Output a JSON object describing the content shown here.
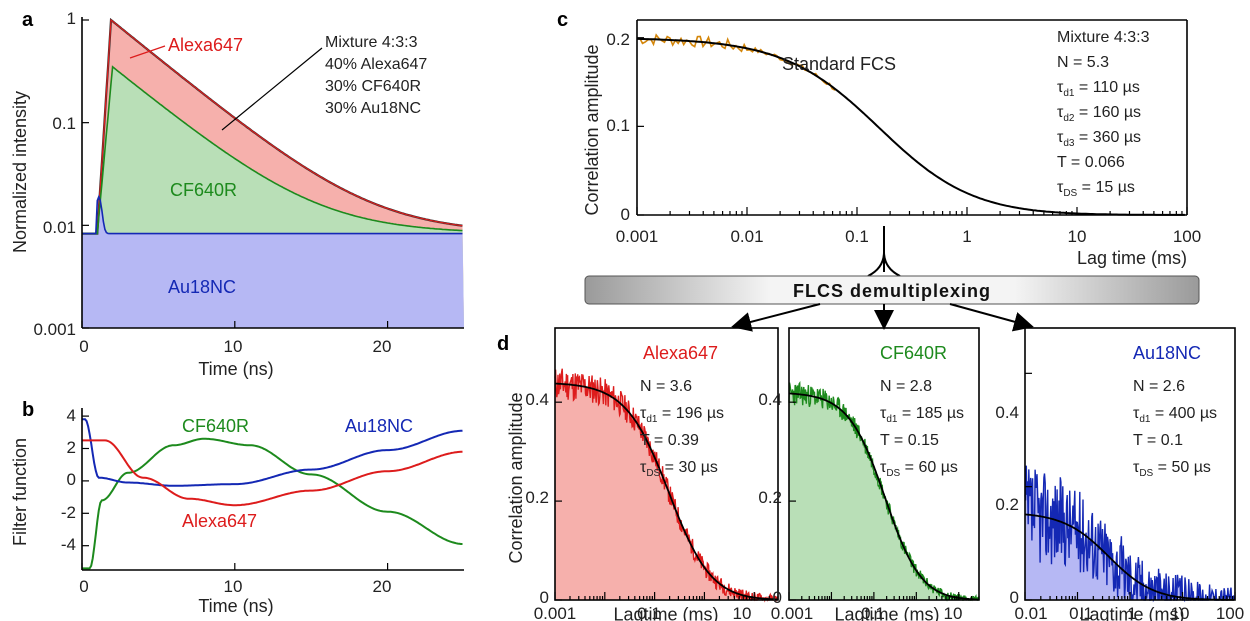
{
  "panels": {
    "a": {
      "letter": "a",
      "ylabel": "Normalized intensity",
      "xlabel": "Time (ns)",
      "xticks": [
        "0",
        "10",
        "20"
      ],
      "yticks": [
        "0.001",
        "0.01",
        "0.1",
        "1"
      ],
      "legend_lines": [
        "Mixture 4:3:3",
        "40% Alexa647",
        "30% CF640R",
        "30% Au18NC"
      ],
      "series_labels": {
        "alexa": "Alexa647",
        "cf": "CF640R",
        "au": "Au18NC"
      }
    },
    "b": {
      "letter": "b",
      "ylabel": "Filter function",
      "xlabel": "Time (ns)",
      "xticks": [
        "0",
        "10",
        "20"
      ],
      "yticks": [
        "4",
        "2",
        "0",
        "-2",
        "-4"
      ],
      "series_labels": {
        "cf": "CF640R",
        "au": "Au18NC",
        "alexa": "Alexa647"
      }
    },
    "c": {
      "letter": "c",
      "ylabel": "Correlation amplitude",
      "xlabel": "Lag time (ms)",
      "xticks": [
        "0.001",
        "0.01",
        "0.1",
        "1",
        "10",
        "100"
      ],
      "yticks": [
        "0",
        "0.1",
        "0.2"
      ],
      "title": "Standard FCS",
      "params": {
        "l1": "Mixture 4:3:3",
        "l2": "N = 5.3",
        "l3_sym": "τ",
        "l3_sub": "d1",
        "l3_val": " = 110 µs",
        "l4_sym": "τ",
        "l4_sub": "d2",
        "l4_val": " = 160 µs",
        "l5_sym": "τ",
        "l5_sub": "d3",
        "l5_val": " = 360 µs",
        "l6": "T = 0.066",
        "l7_sym": "τ",
        "l7_sub": "DS",
        "l7_val": " = 15 µs"
      }
    },
    "d": {
      "letter": "d",
      "ylabel": "Correlation amplitude",
      "banner": "FLCS demultiplexing",
      "alexa": {
        "name": "Alexa647",
        "xlabel": "Lagtime (ms)",
        "xticks": [
          "0.001",
          "0.1",
          "10"
        ],
        "yticks": [
          "0",
          "0.2",
          "0.4"
        ],
        "p1": "N = 3.6",
        "p2_sym": "τ",
        "p2_sub": "d1",
        "p2_val": " = 196 µs",
        "p3": "T = 0.39",
        "p4_sym": "τ",
        "p4_sub": "DS",
        "p4_val": " = 30 µs"
      },
      "cf": {
        "name": "CF640R",
        "xlabel": "Lagtime (ms)",
        "xticks": [
          "0.001",
          "0.1",
          "10"
        ],
        "yticks": [
          "0",
          "0.2",
          "0.4"
        ],
        "p1": "N = 2.8",
        "p2_sym": "τ",
        "p2_sub": "d1",
        "p2_val": " = 185 µs",
        "p3": "T = 0.15",
        "p4_sym": "τ",
        "p4_sub": "DS",
        "p4_val": " = 60 µs"
      },
      "au": {
        "name": "Au18NC",
        "xlabel": "Lagtime (ms)",
        "xticks": [
          "0.01",
          "0.1",
          "1",
          "10",
          "100"
        ],
        "yticks": [
          "0",
          "0.2",
          "0.4"
        ],
        "p1": "N = 2.6",
        "p2_sym": "τ",
        "p2_sub": "d1",
        "p2_val": " = 400 µs",
        "p3": "T = 0.1",
        "p4_sym": "τ",
        "p4_sub": "DS",
        "p4_val": " = 50 µs"
      }
    }
  },
  "colors": {
    "alexa": "#dd1c1c",
    "alexa_fill": "#f6b0ac",
    "cf": "#1d8a1d",
    "cf_fill": "#b9dfb7",
    "au": "#1428b4",
    "au_fill": "#b6b8f4",
    "fit": "#000000",
    "fcs_data": "#d4860a"
  },
  "chart_data": [
    {
      "panel": "a",
      "type": "area",
      "x_range": [
        0,
        25
      ],
      "y_range": [
        0.001,
        1
      ],
      "y_scale": "log",
      "series": [
        {
          "name": "Alexa647",
          "peak": {
            "x": 1.9,
            "y": 1.0
          },
          "tail_end": {
            "x": 25,
            "y": 0.0085
          }
        },
        {
          "name": "CF640R",
          "peak": {
            "x": 2.0,
            "y": 0.35
          },
          "tail_end": {
            "x": 25,
            "y": 0.0085
          }
        },
        {
          "name": "Au18NC",
          "peak": {
            "x": 1.1,
            "y": 0.019
          },
          "baseline": 0.0083
        }
      ]
    },
    {
      "panel": "b",
      "type": "line",
      "x_range": [
        0,
        25
      ],
      "y_range": [
        -5.5,
        4.5
      ],
      "series": [
        {
          "name": "CF640R",
          "x": [
            0.5,
            1.3,
            3,
            6,
            8,
            11,
            15,
            20,
            25
          ],
          "y": [
            -5.4,
            -1.2,
            0.5,
            2.2,
            2.6,
            2.2,
            0.4,
            -1.9,
            -3.9
          ]
        },
        {
          "name": "Au18NC",
          "x": [
            0.2,
            1.1,
            3,
            6,
            10,
            15,
            20,
            25
          ],
          "y": [
            3.8,
            0.2,
            -0.1,
            -0.3,
            -0.2,
            0.7,
            1.9,
            3.1
          ]
        },
        {
          "name": "Alexa647",
          "x": [
            0.4,
            1.5,
            4,
            7,
            10,
            15,
            20,
            25
          ],
          "y": [
            2.5,
            2.5,
            0.2,
            -1.1,
            -1.5,
            -0.6,
            0.6,
            1.8
          ]
        }
      ]
    },
    {
      "panel": "c",
      "type": "line",
      "x_range": [
        0.001,
        100
      ],
      "x_scale": "log",
      "y_range": [
        0,
        0.22
      ],
      "fit": {
        "G0": 0.2,
        "tau_ms": 0.16
      }
    },
    {
      "panel": "d",
      "type": "area",
      "x_scale": "log",
      "series": [
        {
          "name": "Alexa647",
          "x_range": [
            0.001,
            30
          ],
          "y_range": [
            0,
            0.55
          ],
          "G0": 0.44,
          "tau_ms": 0.196
        },
        {
          "name": "CF640R",
          "x_range": [
            0.001,
            30
          ],
          "y_range": [
            0,
            0.55
          ],
          "G0": 0.42,
          "tau_ms": 0.185
        },
        {
          "name": "Au18NC",
          "x_range": [
            0.01,
            100
          ],
          "y_range": [
            0,
            0.48
          ],
          "G0": 0.155,
          "tau_ms": 0.4
        }
      ]
    }
  ]
}
